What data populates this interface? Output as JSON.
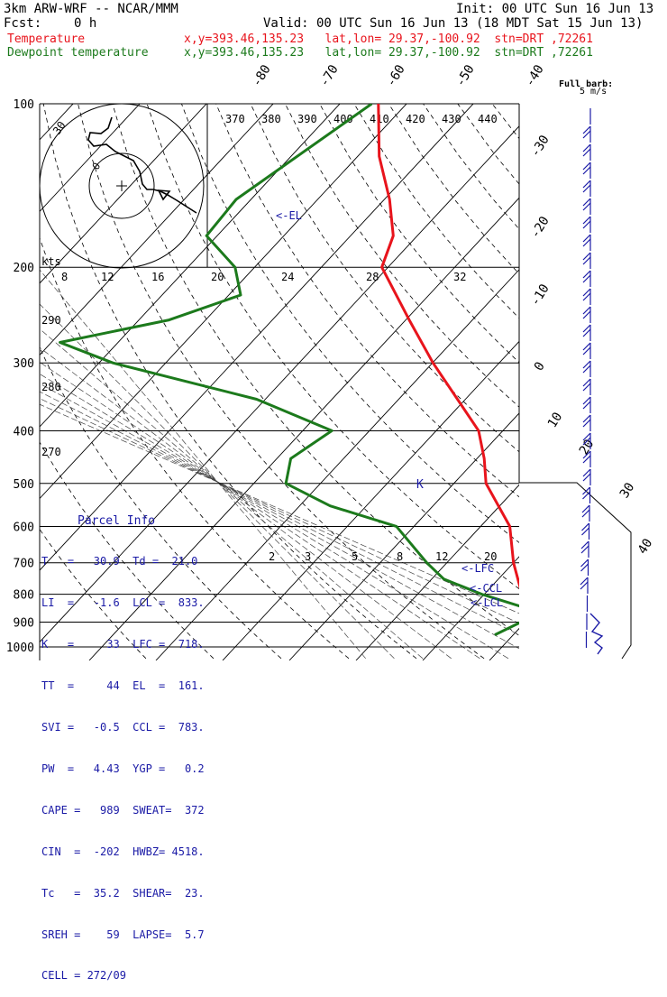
{
  "header": {
    "title": "3km ARW-WRF -- NCAR/MMM",
    "init": "Init: 00 UTC Sun 16 Jun 13",
    "fcst_label": "Fcst:",
    "fcst_value": "0 h",
    "valid": "Valid: 00 UTC Sun 16 Jun 13 (18 MDT Sat 15 Jun 13)"
  },
  "legend": [
    {
      "name": "Temperature",
      "info": "x,y=393.46,135.23   lat,lon= 29.37,-100.92  stn=DRT ,72261",
      "color": "#e8141c"
    },
    {
      "name": "Dewpoint temperature",
      "info": "x,y=393.46,135.23   lat,lon= 29.37,-100.92  stn=DRT ,72261",
      "color": "#1c7a1c"
    }
  ],
  "barb_label": {
    "title": "Full barb:",
    "value": "5 m/s"
  },
  "hodograph": {
    "speed_label": "kts",
    "ring_labels": [
      "30",
      "0"
    ]
  },
  "chart_data": {
    "type": "line",
    "title": "Skew-T log-P diagram",
    "pressure_ticks": [
      100,
      200,
      300,
      400,
      500,
      600,
      700,
      800,
      900,
      1000
    ],
    "isotherm_labels": [
      "-80",
      "-70",
      "-60",
      "-50",
      "-40",
      "-30",
      "-20",
      "-10",
      "0",
      "10",
      "20",
      "30",
      "40"
    ],
    "theta_labels": [
      "370",
      "380",
      "390",
      "400",
      "410",
      "420",
      "430",
      "440"
    ],
    "theta_left_labels": [
      "290",
      "280",
      "270"
    ],
    "mixing_ratio_top_labels": [
      "8",
      "12",
      "16",
      "20",
      "24",
      "28",
      "32"
    ],
    "mixing_ratio_low_labels": [
      "2",
      "3",
      "5",
      "8",
      "12",
      "20"
    ],
    "level_markers": [
      "EL",
      "LFC",
      "CCL",
      "LCL"
    ],
    "series": [
      {
        "name": "Temperature",
        "color": "#e8141c",
        "points": [
          [
            100,
            -78
          ],
          [
            125,
            -70
          ],
          [
            150,
            -62
          ],
          [
            175,
            -56
          ],
          [
            200,
            -53
          ],
          [
            250,
            -41
          ],
          [
            300,
            -31
          ],
          [
            400,
            -14
          ],
          [
            450,
            -9
          ],
          [
            500,
            -5
          ],
          [
            600,
            5
          ],
          [
            700,
            11
          ],
          [
            800,
            17
          ],
          [
            850,
            19
          ],
          [
            900,
            24
          ],
          [
            950,
            29
          ],
          [
            1000,
            31
          ]
        ]
      },
      {
        "name": "Dewpoint temperature",
        "color": "#1c7a1c",
        "points": [
          [
            100,
            -79
          ],
          [
            150,
            -85
          ],
          [
            175,
            -84
          ],
          [
            200,
            -75
          ],
          [
            225,
            -70
          ],
          [
            250,
            -77
          ],
          [
            275,
            -90
          ],
          [
            300,
            -79
          ],
          [
            350,
            -52
          ],
          [
            400,
            -36
          ],
          [
            450,
            -38
          ],
          [
            500,
            -35
          ],
          [
            550,
            -25
          ],
          [
            600,
            -12
          ],
          [
            700,
            -2
          ],
          [
            750,
            3
          ],
          [
            800,
            11
          ],
          [
            850,
            20
          ],
          [
            900,
            21
          ],
          [
            950,
            19
          ]
        ]
      }
    ]
  },
  "parcel_info": {
    "title": "Parcel Info",
    "rows": [
      "T   =   30.9  Td =  21.0",
      "LI  =   -1.6  LCL =  833.",
      "K   =     33  LFC =  718.",
      "TT  =     44  EL  =  161.",
      "SVI =   -0.5  CCL =  783.",
      "PW  =   4.43  YGP =   0.2",
      "CAPE =   989  SWEAT=  372",
      "CIN  =  -202  HWBZ= 4518.",
      "Tc   =  35.2  SHEAR=  23.",
      "SREH =    59  LAPSE=  5.7",
      "CELL = 272/09"
    ]
  }
}
